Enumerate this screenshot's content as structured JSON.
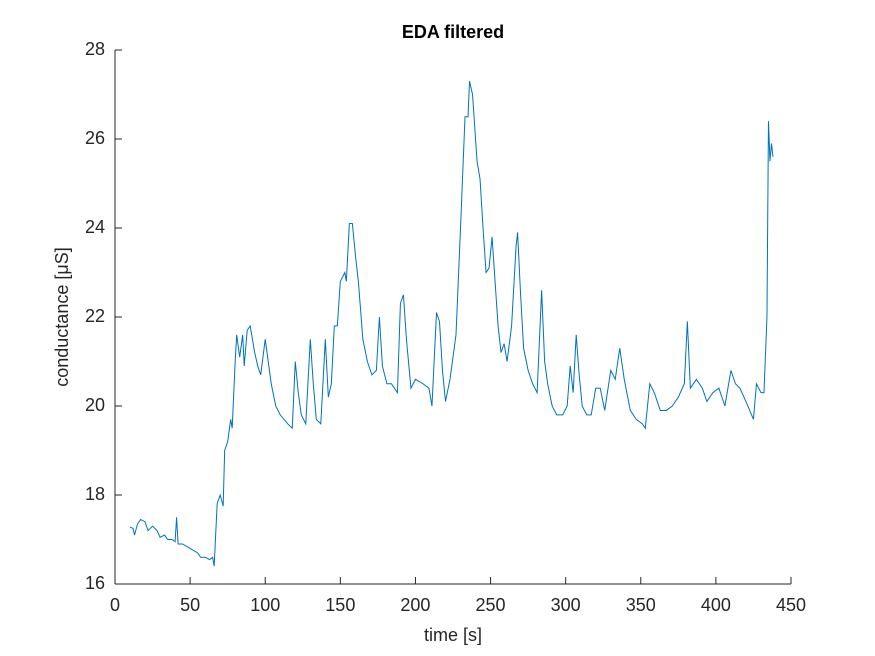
{
  "chart_data": {
    "type": "line",
    "title": "EDA filtered",
    "x_label": "time [s]",
    "y_label": "conductance [μS]",
    "color": "#0072BD",
    "grid": false,
    "xlim": [
      0,
      450
    ],
    "xticks": [
      0,
      50,
      100,
      150,
      200,
      250,
      300,
      350,
      400,
      450
    ],
    "ylim": [
      16,
      28
    ],
    "yticks": [
      16,
      18,
      20,
      22,
      24,
      26,
      28
    ],
    "x": [
      10,
      12,
      13,
      15,
      17,
      20,
      22,
      25,
      28,
      30,
      33,
      35,
      38,
      40,
      41,
      42,
      45,
      50,
      55,
      57,
      60,
      63,
      65,
      66,
      68,
      70,
      72,
      73,
      75,
      77,
      78,
      80,
      81,
      83,
      85,
      86,
      88,
      90,
      93,
      95,
      97,
      100,
      104,
      107,
      110,
      115,
      118,
      120,
      122,
      124,
      127,
      130,
      132,
      134,
      137,
      140,
      142,
      144,
      146,
      148,
      150,
      153,
      154,
      156,
      158,
      160,
      162,
      165,
      168,
      171,
      174,
      176,
      178,
      181,
      184,
      188,
      190,
      192,
      194,
      197,
      200,
      205,
      209,
      211,
      214,
      216,
      218,
      220,
      223,
      227,
      230,
      233,
      235,
      236,
      238,
      241,
      243,
      245,
      247,
      249,
      251,
      253,
      255,
      257,
      259,
      261,
      264,
      267,
      268,
      270,
      272,
      275,
      278,
      281,
      284,
      286,
      288,
      291,
      294,
      298,
      301,
      303,
      305,
      307,
      309,
      311,
      314,
      317,
      320,
      323,
      326,
      330,
      333,
      336,
      339,
      343,
      347,
      351,
      353,
      356,
      359,
      363,
      367,
      371,
      375,
      379,
      381,
      383,
      387,
      391,
      394,
      398,
      402,
      406,
      410,
      413,
      416,
      420,
      425,
      427,
      430,
      432,
      434,
      435,
      436,
      437,
      438
    ],
    "values": [
      17.28,
      17.25,
      17.1,
      17.35,
      17.45,
      17.4,
      17.2,
      17.3,
      17.2,
      17.05,
      17.1,
      17.0,
      17.0,
      16.95,
      17.5,
      16.9,
      16.9,
      16.8,
      16.7,
      16.6,
      16.6,
      16.55,
      16.6,
      16.4,
      17.8,
      18.0,
      17.75,
      19.0,
      19.2,
      19.7,
      19.5,
      21.0,
      21.6,
      21.1,
      21.6,
      20.9,
      21.7,
      21.8,
      21.2,
      20.9,
      20.7,
      21.5,
      20.5,
      20.0,
      19.8,
      19.6,
      19.5,
      21.0,
      20.3,
      19.8,
      19.6,
      21.5,
      20.5,
      19.7,
      19.6,
      21.5,
      20.2,
      20.5,
      21.8,
      21.8,
      22.8,
      23.0,
      22.8,
      24.1,
      24.1,
      23.4,
      22.8,
      21.5,
      21.0,
      20.7,
      20.8,
      22.0,
      20.9,
      20.5,
      20.5,
      20.3,
      22.3,
      22.5,
      21.5,
      20.4,
      20.6,
      20.5,
      20.4,
      20.0,
      22.1,
      21.9,
      20.8,
      20.1,
      20.6,
      21.6,
      24.0,
      26.5,
      26.5,
      27.3,
      27.0,
      25.5,
      25.1,
      24.0,
      23.0,
      23.1,
      23.8,
      22.8,
      21.8,
      21.2,
      21.4,
      21.0,
      21.8,
      23.6,
      23.9,
      22.5,
      21.3,
      20.8,
      20.5,
      20.3,
      22.6,
      21.0,
      20.5,
      20.0,
      19.8,
      19.8,
      20.0,
      20.9,
      20.3,
      21.6,
      20.7,
      20.0,
      19.8,
      19.8,
      20.4,
      20.4,
      19.9,
      20.8,
      20.6,
      21.3,
      20.6,
      19.9,
      19.7,
      19.6,
      19.5,
      20.5,
      20.3,
      19.9,
      19.9,
      20.0,
      20.2,
      20.5,
      21.9,
      20.4,
      20.6,
      20.4,
      20.1,
      20.3,
      20.4,
      20.0,
      20.8,
      20.5,
      20.4,
      20.1,
      19.7,
      20.5,
      20.3,
      20.3,
      22.0,
      26.4,
      25.5,
      25.9,
      25.6
    ]
  }
}
